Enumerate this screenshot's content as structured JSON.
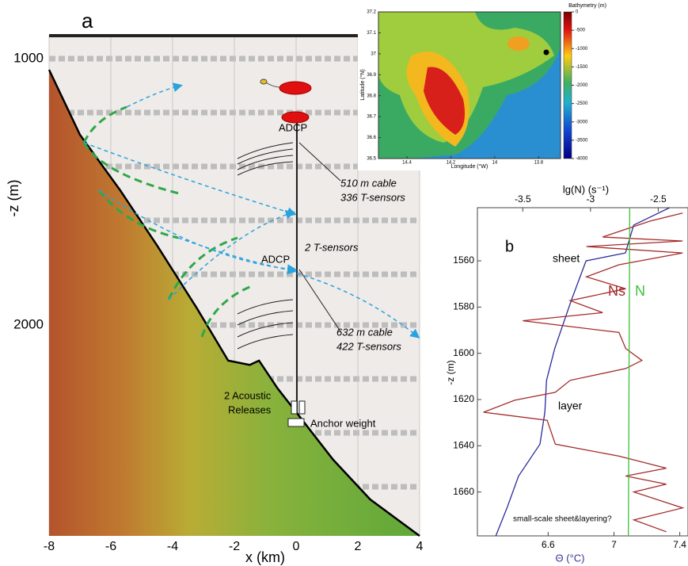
{
  "chart_data": [
    {
      "type": "line",
      "label": "a",
      "xlabel": "x (km)",
      "ylabel": "-z (m)",
      "x": [
        -8,
        -7,
        -5.7,
        -4.5,
        -3.2,
        -2.2,
        -1.5,
        -1.2,
        -0.6,
        0,
        1.2,
        2.4,
        4
      ],
      "values": [
        1042,
        1286,
        1494,
        1702,
        1940,
        2134,
        2150,
        2134,
        2238,
        2327,
        2506,
        2655,
        2792
      ],
      "color": "#000000",
      "xlim": [
        -8,
        4
      ],
      "ylim": [
        914,
        2792
      ],
      "y_reversed": true,
      "xticks": [
        -8,
        -6,
        -4,
        -2,
        0,
        2,
        4
      ],
      "yticks": [
        1000,
        2000
      ],
      "annotations": [
        "ADCP",
        "510 m cable",
        "336 T-sensors",
        "2 T-sensors",
        "ADCP",
        "632 m cable",
        "422 T-sensors",
        "2 Acoustic",
        "Releases",
        "Anchor weight"
      ]
    },
    {
      "type": "map",
      "title": "Bathymetry (m)",
      "xlabel": "Longitude (°W)",
      "ylabel": "Latitude (°N)",
      "xlim": [
        14.53,
        13.7
      ],
      "ylim": [
        36.5,
        37.2
      ],
      "xticks": [
        14.4,
        14.2,
        14,
        13.8
      ],
      "yticks": [
        36.5,
        36.6,
        36.7,
        36.8,
        36.9,
        37,
        37.1,
        37.2
      ],
      "clim": [
        0,
        -4000
      ],
      "cticks": [
        0,
        -500,
        -1000,
        -1500,
        -2000,
        -2500,
        -3000,
        -3500,
        -4000
      ]
    },
    {
      "type": "profile",
      "label": "b",
      "xlabel": "Θ (°C)",
      "x2label": "lg(N) (s⁻¹)",
      "ylabel": "-z (m)",
      "xlim": [
        6.17,
        7.45
      ],
      "x2lim": [
        -3.835,
        -2.28
      ],
      "ylim": [
        1537,
        1679
      ],
      "y_reversed": true,
      "xticks": [
        6.6,
        7,
        7.4
      ],
      "x2ticks": [
        -3.5,
        -3,
        -2.5
      ],
      "yticks": [
        1560,
        1580,
        1600,
        1620,
        1640,
        1660
      ],
      "series": [
        {
          "color": "#2a2a9a",
          "axis": "x",
          "y": [
            1536.6,
            1544.5,
            1556.6,
            1560,
            1577.2,
            1597.9,
            1611.7,
            1625.5,
            1639.3,
            1653.1,
            1666.9,
            1679.3
          ],
          "values": [
            7.35,
            7.12,
            7.07,
            6.83,
            6.74,
            6.64,
            6.59,
            6.58,
            6.55,
            6.42,
            6.35,
            6.28
          ]
        },
        {
          "name": "Ns",
          "color": "#a52a2a",
          "axis": "x2",
          "y": [
            1539.3,
            1542.8,
            1549.7,
            1551.4,
            1553.8,
            1556.6,
            1561.7,
            1566.9,
            1572.1,
            1577.2,
            1582.4,
            1585.9,
            1591.0,
            1597.9,
            1603.1,
            1606.6,
            1611.7,
            1616.9,
            1620.3,
            1625.5,
            1629.0,
            1639.3,
            1644.5,
            1649.7,
            1653.1,
            1656.6,
            1660.0,
            1666.9,
            1672.1,
            1677.2
          ],
          "values": [
            -2.32,
            -2.56,
            -2.91,
            -2.32,
            -3.03,
            -2.32,
            -2.79,
            -3.03,
            -2.74,
            -3.15,
            -2.91,
            -3.5,
            -2.79,
            -2.74,
            -2.62,
            -2.74,
            -3.15,
            -3.26,
            -3.56,
            -3.79,
            -3.32,
            -3.26,
            -2.79,
            -2.44,
            -2.74,
            -2.44,
            -2.68,
            -2.32,
            -2.68,
            -2.44
          ]
        },
        {
          "name": "N",
          "color": "#3cc03c",
          "axis": "x2",
          "y": [
            1537,
            1679
          ],
          "values": [
            -2.71,
            -2.72
          ]
        }
      ],
      "annotations": [
        "sheet",
        "layer",
        "small-scale sheet&layering?"
      ]
    }
  ]
}
